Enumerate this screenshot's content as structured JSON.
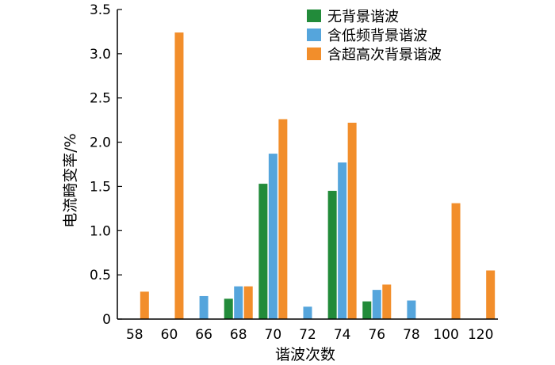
{
  "chart_data": {
    "type": "bar",
    "xlabel": "谐波次数",
    "ylabel": "电流畸变率/%",
    "ylim": [
      0,
      3.5
    ],
    "yticks": [
      "0",
      "0.5",
      "1.0",
      "1.5",
      "2.0",
      "2.5",
      "3.0",
      "3.5"
    ],
    "categories": [
      "58",
      "60",
      "66",
      "68",
      "70",
      "72",
      "74",
      "76",
      "78",
      "100",
      "120"
    ],
    "grid": false,
    "legend_position": "top-right",
    "series": [
      {
        "name": "无背景谐波",
        "color": "#228B3A",
        "values": [
          null,
          null,
          null,
          0.23,
          1.53,
          null,
          1.45,
          0.2,
          null,
          null,
          null
        ]
      },
      {
        "name": "含低频背景谐波",
        "color": "#55A5DC",
        "values": [
          null,
          null,
          0.26,
          0.37,
          1.87,
          0.14,
          1.77,
          0.33,
          0.21,
          null,
          null
        ]
      },
      {
        "name": "含超高次背景谐波",
        "color": "#F28E2B",
        "values": [
          0.31,
          3.24,
          null,
          0.37,
          2.26,
          null,
          2.22,
          0.39,
          null,
          1.31,
          0.55
        ]
      }
    ]
  }
}
